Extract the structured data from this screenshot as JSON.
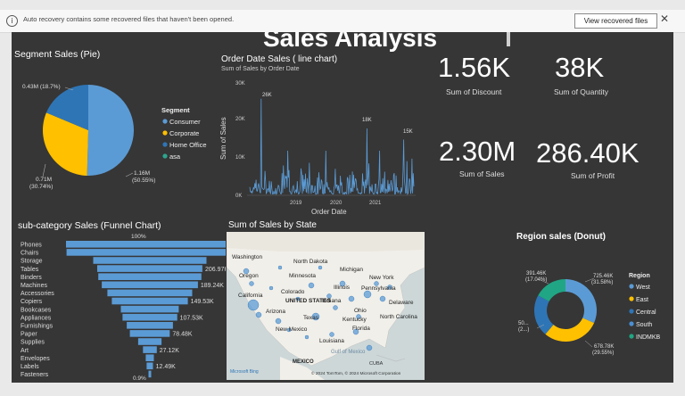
{
  "notification": {
    "message": "Auto recovery contains some recovered files that haven't been opened.",
    "button_label": "View recovered files",
    "close_icon": "close-icon"
  },
  "dashboard": {
    "title": "Sales Analysis",
    "pie": {
      "title": "Segment Sales (Pie)",
      "legend_title": "Segment",
      "legend": [
        "Consumer",
        "Corporate",
        "Home Office",
        "asa"
      ],
      "label_left": "0.43M (18.7%)",
      "label_bl1": "0.71M",
      "label_bl2": "(30.74%)",
      "label_br1": "1.16M",
      "label_br2": "(50.55%)"
    },
    "line": {
      "title": "Order Date Sales ( line chart)",
      "subtitle": "Sum of Sales by Order Date",
      "ylabel": "Sum of Sales",
      "xlabel": "Order Date",
      "yticks": [
        "30K",
        "20K",
        "10K",
        "0K"
      ],
      "xticks": [
        "2019",
        "2020",
        "2021"
      ],
      "peak_labels": [
        "26K",
        "18K",
        "15K"
      ]
    },
    "cards": [
      {
        "value": "1.56K",
        "label": "Sum of Discount"
      },
      {
        "value": "38K",
        "label": "Sum of Quantity"
      },
      {
        "value": "2.30M",
        "label": "Sum of Sales"
      },
      {
        "value": "286.40K",
        "label": "Sum of Profit"
      }
    ],
    "funnel": {
      "title": "sub-category Sales (Funnel Chart)",
      "top_label": "100%",
      "bottom_label": "0.9%",
      "data_labels": [
        "206.97K",
        "189.24K",
        "149.53K",
        "107.53K",
        "78.48K",
        "27.12K",
        "12.49K"
      ]
    },
    "map": {
      "title": "Sum of Sales by State",
      "places": [
        "Washington",
        "North Dakota",
        "Michigan",
        "Oregon",
        "Minnesota",
        "New York",
        "Illinois",
        "Pennsylvania",
        "California",
        "Colorado",
        "UNITED STATES",
        "Indiana",
        "Delaware",
        "Arizona",
        "Ohio",
        "Texas",
        "Kentucky",
        "North Carolina",
        "New Mexico",
        "Florida",
        "Louisiana",
        "MEXICO",
        "CUBA",
        "Gulf of Mexico"
      ],
      "brand": "Microsoft Bing",
      "copyright": "© 2024 TomTom, © 2024 Microsoft Corporation"
    },
    "donut": {
      "title": "Region sales (Donut)",
      "legend_title": "Region",
      "legend": [
        "West",
        "East",
        "Central",
        "South",
        "INDMKB"
      ],
      "label_tl1": "391.46K",
      "label_tl2": "(17.04%)",
      "label_tr1": "725.46K",
      "label_tr2": "(31.58%)",
      "label_l1": "50...",
      "label_l2": "(2...)",
      "label_br1": "678.78K",
      "label_br2": "(29.55%)"
    }
  },
  "colors": {
    "consumer": "#5b9bd5",
    "corporate": "#ffc000",
    "home_office": "#2e75b6",
    "asa": "#2ca58d",
    "west": "#5b9bd5",
    "east": "#ffc000",
    "central": "#2e75b6",
    "south": "#4a8fd4",
    "indmkb": "#20a684",
    "bar": "#5b9bd5"
  },
  "chart_data": [
    {
      "type": "pie",
      "title": "Segment Sales (Pie)",
      "categories": [
        "Consumer",
        "Corporate",
        "Home Office",
        "asa"
      ],
      "values": [
        1.16,
        0.71,
        0.43,
        0.0
      ],
      "unit": "M",
      "percentages": [
        50.55,
        30.74,
        18.7,
        0
      ]
    },
    {
      "type": "line",
      "title": "Order Date Sales ( line chart)",
      "subtitle": "Sum of Sales by Order Date",
      "xlabel": "Order Date",
      "ylabel": "Sum of Sales",
      "ylim": [
        0,
        30000
      ],
      "peaks": [
        {
          "x": "2018",
          "y": 26000
        },
        {
          "x": "2021",
          "y": 18000
        },
        {
          "x": "2021-late",
          "y": 15000
        }
      ]
    },
    {
      "type": "bar",
      "title": "sub-category Sales (Funnel Chart)",
      "categories": [
        "Phones",
        "Chairs",
        "Storage",
        "Tables",
        "Binders",
        "Machines",
        "Accessories",
        "Copiers",
        "Bookcases",
        "Appliances",
        "Furnishings",
        "Paper",
        "Supplies",
        "Art",
        "Envelopes",
        "Labels",
        "Fasteners"
      ],
      "values": [
        330000,
        328000,
        223000,
        206970,
        203000,
        189240,
        167000,
        149530,
        114000,
        107530,
        91000,
        78480,
        46000,
        27120,
        16000,
        12490,
        3000
      ]
    },
    {
      "type": "pie",
      "title": "Region sales (Donut)",
      "categories": [
        "West",
        "East",
        "Central",
        "South",
        "INDMKB"
      ],
      "values": [
        725460,
        678780,
        501000,
        391460,
        0
      ],
      "percentages": [
        31.58,
        29.55,
        21.8,
        17.04,
        0
      ]
    }
  ]
}
